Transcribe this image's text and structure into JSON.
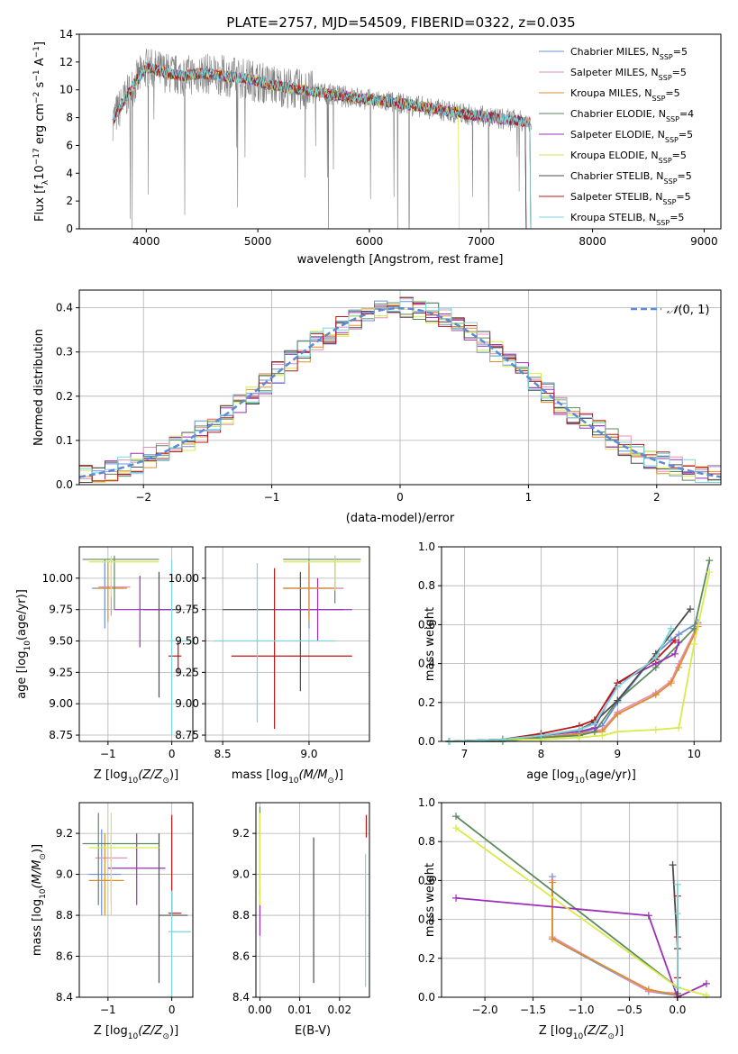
{
  "title": "PLATE=2757, MJD=54509, FIBERID=0322, z=0.035",
  "series": [
    {
      "name": "Chabrier MILES",
      "nssp": "5",
      "color": "#6a8fd8"
    },
    {
      "name": "Salpeter MILES",
      "nssp": "5",
      "color": "#e68fb8"
    },
    {
      "name": "Kroupa MILES",
      "nssp": "5",
      "color": "#d9902c"
    },
    {
      "name": "Chabrier ELODIE",
      "nssp": "4",
      "color": "#5a8a5e"
    },
    {
      "name": "Salpeter ELODIE",
      "nssp": "5",
      "color": "#9b2fb8"
    },
    {
      "name": "Kroupa ELODIE",
      "nssp": "5",
      "color": "#d9ea4a"
    },
    {
      "name": "Chabrier STELIB",
      "nssp": "5",
      "color": "#4d4d4d"
    },
    {
      "name": "Salpeter STELIB",
      "nssp": "5",
      "color": "#b81616"
    },
    {
      "name": "Kroupa STELIB",
      "nssp": "5",
      "color": "#7ad6dc"
    }
  ],
  "legend_prefix": "N",
  "legend_sub": "SSP",
  "legend_eq": "=",
  "chart_data": [
    {
      "id": "spectrum",
      "type": "line",
      "xlabel": "wavelength [Angstrom, rest frame]",
      "ylabel_parts": [
        "Flux [f",
        "λ",
        "10",
        "−17",
        " erg cm",
        "−2",
        " s",
        "−1",
        " A",
        "−1",
        "]"
      ],
      "xlim": [
        3400,
        9150
      ],
      "ylim": [
        0,
        14
      ],
      "xticks": [
        "4000",
        "5000",
        "6000",
        "7000",
        "8000",
        "9000"
      ],
      "xtick_values": [
        4000,
        5000,
        6000,
        7000,
        8000,
        9000
      ],
      "yticks": [
        "0",
        "2",
        "4",
        "6",
        "8",
        "10",
        "12",
        "14"
      ],
      "ytick_values": [
        0,
        2,
        4,
        6,
        8,
        10,
        12,
        14
      ],
      "data_color": "#808080",
      "data_range": [
        3700,
        7450
      ],
      "model_envelope": {
        "x": [
          3700,
          3800,
          3900,
          4000,
          4100,
          4300,
          4500,
          4700,
          4900,
          5100,
          5300,
          5500,
          5700,
          6000,
          6300,
          6600,
          6900,
          7200,
          7400,
          7600,
          7900,
          8200,
          8500,
          8800
        ],
        "y": [
          7.8,
          9.2,
          10.5,
          11.6,
          11.4,
          11.0,
          11.2,
          11.0,
          10.8,
          10.4,
          10.1,
          9.9,
          9.6,
          9.3,
          9.0,
          8.6,
          8.2,
          7.9,
          7.7,
          7.6,
          7.4,
          7.2,
          7.0,
          6.8
        ]
      },
      "model_ends": [
        7440,
        7440,
        7440,
        7400,
        7400,
        6800,
        7400,
        7440,
        7440
      ]
    },
    {
      "id": "residual-hist",
      "type": "bar",
      "xlabel": "(data-model)/error",
      "ylabel": "Normed distribution",
      "xlim": [
        -2.5,
        2.5
      ],
      "ylim": [
        0,
        0.44
      ],
      "xticks": [
        "−2",
        "−1",
        "0",
        "1",
        "2"
      ],
      "xtick_values": [
        -2,
        -1,
        0,
        1,
        2
      ],
      "yticks": [
        "0.0",
        "0.1",
        "0.2",
        "0.3",
        "0.4"
      ],
      "ytick_values": [
        0,
        0.1,
        0.2,
        0.3,
        0.4
      ],
      "normal_label_script": "𝒩",
      "normal_label_rest": "(0, 1)",
      "normal_color": "#5b8ad6",
      "bin_width": 0.1
    },
    {
      "id": "age-vs-Z",
      "type": "scatter",
      "xlabel_parts": [
        "Z [log",
        "10",
        "(Z/Z",
        "⊙",
        ")]"
      ],
      "ylabel_parts": [
        "age  [log",
        "10",
        "(age/yr)]"
      ],
      "xlim": [
        -1.45,
        0.33
      ],
      "ylim": [
        8.7,
        10.25
      ],
      "xticks": [
        "−1",
        "0"
      ],
      "xtick_values": [
        -1,
        0
      ],
      "yticks": [
        "8.75",
        "9.00",
        "9.25",
        "9.50",
        "9.75",
        "10.00"
      ],
      "ytick_values": [
        8.75,
        9.0,
        9.25,
        9.5,
        9.75,
        10.0
      ],
      "points": [
        {
          "s": 6,
          "x": -0.2,
          "xl": -0.45,
          "xh": 0.1,
          "y": 9.75,
          "yl": 9.05,
          "yh": 10.05
        },
        {
          "s": 4,
          "x": -0.5,
          "xl": -0.9,
          "xh": 0.0,
          "y": 9.75,
          "yl": 9.45,
          "yh": 10.02
        },
        {
          "s": 0,
          "x": -1.05,
          "xl": -1.25,
          "xh": -0.75,
          "y": 9.92,
          "yl": 9.6,
          "yh": 10.15
        },
        {
          "s": 1,
          "x": -0.95,
          "xl": -1.15,
          "xh": -0.65,
          "y": 9.93,
          "yl": 9.7,
          "yh": 10.12
        },
        {
          "s": 2,
          "x": -1.0,
          "xl": -1.2,
          "xh": -0.7,
          "y": 9.92,
          "yl": 9.65,
          "yh": 10.13
        },
        {
          "s": 3,
          "x": -0.9,
          "xl": -1.4,
          "xh": -0.2,
          "y": 10.15,
          "yl": 9.75,
          "yh": 10.18
        },
        {
          "s": 5,
          "x": -0.95,
          "xl": -1.3,
          "xh": -0.2,
          "y": 10.13,
          "yl": 9.85,
          "yh": 10.18
        },
        {
          "s": 7,
          "x": 0.1,
          "xl": -0.05,
          "xh": 0.15,
          "y": 9.38,
          "yl": 9.25,
          "yh": 9.5
        },
        {
          "s": 8,
          "x": -0.0,
          "xl": -0.05,
          "xh": 0.3,
          "y": 9.5,
          "yl": 8.75,
          "yh": 10.15
        }
      ]
    },
    {
      "id": "age-vs-mass",
      "type": "scatter",
      "xlabel_parts": [
        "mass [log",
        "10",
        "(M/M",
        "⊙",
        ")]"
      ],
      "xlim": [
        8.4,
        9.35
      ],
      "ylim": [
        8.7,
        10.25
      ],
      "xticks": [
        "8.5",
        "9.0"
      ],
      "xtick_values": [
        8.5,
        9.0
      ],
      "yticks": [
        "8.75",
        "9.00",
        "9.25",
        "9.50",
        "9.75",
        "10.00"
      ],
      "ytick_values": [
        8.75,
        9.0,
        9.25,
        9.5,
        9.75,
        10.0
      ],
      "points": [
        {
          "s": 6,
          "x": 8.95,
          "xl": 8.5,
          "xh": 9.2,
          "y": 9.75,
          "yl": 9.1,
          "yh": 10.05
        },
        {
          "s": 4,
          "x": 9.05,
          "xl": 8.8,
          "xh": 9.25,
          "y": 9.75,
          "yl": 9.5,
          "yh": 10.0
        },
        {
          "s": 0,
          "x": 9.0,
          "xl": 8.85,
          "xh": 9.2,
          "y": 9.92,
          "yl": 9.6,
          "yh": 10.15
        },
        {
          "s": 1,
          "x": 9.0,
          "xl": 8.85,
          "xh": 9.2,
          "y": 9.92,
          "yl": 9.7,
          "yh": 10.1
        },
        {
          "s": 2,
          "x": 9.0,
          "xl": 8.85,
          "xh": 9.15,
          "y": 9.92,
          "yl": 9.65,
          "yh": 10.12
        },
        {
          "s": 3,
          "x": 9.15,
          "xl": 8.85,
          "xh": 9.3,
          "y": 10.15,
          "yl": 9.8,
          "yh": 10.18
        },
        {
          "s": 5,
          "x": 9.15,
          "xl": 8.85,
          "xh": 9.3,
          "y": 10.13,
          "yl": 9.9,
          "yh": 10.18
        },
        {
          "s": 7,
          "x": 8.8,
          "xl": 8.55,
          "xh": 9.25,
          "y": 9.38,
          "yl": 8.8,
          "yh": 10.08
        },
        {
          "s": 8,
          "x": 8.7,
          "xl": 8.45,
          "xh": 9.15,
          "y": 9.5,
          "yl": 8.85,
          "yh": 10.12
        }
      ]
    },
    {
      "id": "massweight-vs-age",
      "type": "line",
      "xlabel_parts": [
        "age  [log",
        "10",
        "(age/yr)]"
      ],
      "ylabel": "mass weight",
      "xlim": [
        6.7,
        10.35
      ],
      "ylim": [
        0,
        1
      ],
      "xticks": [
        "7",
        "8",
        "9",
        "10"
      ],
      "xtick_values": [
        7,
        8,
        9,
        10
      ],
      "yticks": [
        "0.0",
        "0.2",
        "0.4",
        "0.6",
        "0.8",
        "1.0"
      ],
      "ytick_values": [
        0,
        0.2,
        0.4,
        0.6,
        0.8,
        1.0
      ],
      "series_points": [
        {
          "s": 0,
          "x": [
            6.8,
            7.5,
            8.0,
            8.5,
            8.8,
            9.0,
            9.5,
            9.7,
            9.8,
            10.05
          ],
          "y": [
            0.0,
            0.01,
            0.02,
            0.04,
            0.08,
            0.2,
            0.45,
            0.52,
            0.55,
            0.61
          ]
        },
        {
          "s": 1,
          "x": [
            6.8,
            7.5,
            8.0,
            8.5,
            8.8,
            9.0,
            9.5,
            9.7,
            9.8,
            10.05
          ],
          "y": [
            0.0,
            0.01,
            0.02,
            0.04,
            0.06,
            0.15,
            0.25,
            0.31,
            0.4,
            0.6
          ]
        },
        {
          "s": 2,
          "x": [
            6.8,
            7.5,
            8.0,
            8.5,
            8.8,
            9.0,
            9.5,
            9.7,
            9.8,
            10.05
          ],
          "y": [
            0.0,
            0.01,
            0.02,
            0.04,
            0.05,
            0.14,
            0.24,
            0.3,
            0.38,
            0.59
          ]
        },
        {
          "s": 3,
          "x": [
            6.8,
            7.5,
            8.0,
            8.5,
            8.7,
            9.0,
            9.5,
            10.0,
            10.2
          ],
          "y": [
            0.0,
            0.0,
            0.02,
            0.03,
            0.05,
            0.21,
            0.38,
            0.58,
            0.93
          ]
        },
        {
          "s": 4,
          "x": [
            6.8,
            7.5,
            8.0,
            8.5,
            8.7,
            9.0,
            9.5,
            9.75,
            9.8
          ],
          "y": [
            0.0,
            0.01,
            0.03,
            0.05,
            0.07,
            0.3,
            0.4,
            0.45,
            0.51
          ]
        },
        {
          "s": 5,
          "x": [
            6.8,
            7.5,
            8.0,
            8.5,
            8.8,
            9.0,
            9.5,
            9.8,
            10.0,
            10.2
          ],
          "y": [
            0.0,
            0.01,
            0.01,
            0.02,
            0.03,
            0.05,
            0.06,
            0.07,
            0.5,
            0.87
          ]
        },
        {
          "s": 6,
          "x": [
            6.8,
            7.5,
            8.0,
            8.5,
            8.7,
            9.0,
            9.5,
            9.95
          ],
          "y": [
            0.0,
            0.01,
            0.03,
            0.06,
            0.1,
            0.21,
            0.45,
            0.68
          ]
        },
        {
          "s": 7,
          "x": [
            6.8,
            7.5,
            8.0,
            8.5,
            8.7,
            9.0,
            9.5,
            9.75
          ],
          "y": [
            0.0,
            0.01,
            0.04,
            0.08,
            0.11,
            0.3,
            0.42,
            0.52
          ]
        },
        {
          "s": 8,
          "x": [
            6.8,
            7.5,
            8.0,
            8.5,
            8.7,
            9.0,
            9.5,
            9.7
          ],
          "y": [
            0.0,
            0.01,
            0.03,
            0.06,
            0.09,
            0.28,
            0.43,
            0.58
          ]
        }
      ]
    },
    {
      "id": "mass-vs-Z",
      "type": "scatter",
      "xlabel_parts": [
        "Z [log",
        "10",
        "(Z/Z",
        "⊙",
        ")]"
      ],
      "ylabel_parts": [
        "mass [log",
        "10",
        "(M/M",
        "⊙",
        ")]"
      ],
      "xlim": [
        -1.45,
        0.33
      ],
      "ylim": [
        8.4,
        9.35
      ],
      "xticks": [
        "−1",
        "0"
      ],
      "xtick_values": [
        -1,
        0
      ],
      "yticks": [
        "8.4",
        "8.6",
        "8.8",
        "9.0",
        "9.2"
      ],
      "ytick_values": [
        8.4,
        8.6,
        8.8,
        9.0,
        9.2
      ],
      "points": [
        {
          "s": 6,
          "x": -0.2,
          "xl": -0.2,
          "xh": 0.25,
          "y": 8.8,
          "yl": 8.47,
          "yh": 9.2
        },
        {
          "s": 4,
          "x": -0.55,
          "xl": -1.0,
          "xh": -0.1,
          "y": 9.03,
          "yl": 8.85,
          "yh": 9.2
        },
        {
          "s": 0,
          "x": -1.1,
          "xl": -1.3,
          "xh": -0.8,
          "y": 9.0,
          "yl": 8.8,
          "yh": 9.22
        },
        {
          "s": 1,
          "x": -0.95,
          "xl": -1.2,
          "xh": -0.7,
          "y": 9.08,
          "yl": 8.85,
          "yh": 9.2
        },
        {
          "s": 2,
          "x": -1.05,
          "xl": -1.3,
          "xh": -0.75,
          "y": 8.97,
          "yl": 8.8,
          "yh": 9.2
        },
        {
          "s": 3,
          "x": -1.15,
          "xl": -1.4,
          "xh": -0.2,
          "y": 9.15,
          "yl": 8.85,
          "yh": 9.3
        },
        {
          "s": 5,
          "x": -0.95,
          "xl": -1.3,
          "xh": -0.2,
          "y": 9.13,
          "yl": 8.8,
          "yh": 9.3
        },
        {
          "s": 7,
          "x": 0.0,
          "xl": -0.05,
          "xh": 0.15,
          "y": 8.81,
          "yl": 8.8,
          "yh": 9.29
        },
        {
          "s": 8,
          "x": 0.0,
          "xl": -0.05,
          "xh": 0.3,
          "y": 8.72,
          "yl": 8.4,
          "yh": 8.92
        }
      ]
    },
    {
      "id": "mass-vs-EBV",
      "type": "scatter",
      "xlabel": "E(B-V)",
      "xlim": [
        -0.001,
        0.0275
      ],
      "ylim": [
        8.4,
        9.35
      ],
      "xticks": [
        "0.00",
        "0.01",
        "0.02"
      ],
      "xtick_values": [
        0,
        0.01,
        0.02
      ],
      "yticks": [
        "8.4",
        "8.6",
        "8.8",
        "9.0",
        "9.2"
      ],
      "ytick_values": [
        8.4,
        8.6,
        8.8,
        9.0,
        9.2
      ],
      "points": [
        {
          "s": 6,
          "x": 0.0135,
          "xl": 0.0135,
          "xh": 0.0135,
          "y": 8.8,
          "yl": 8.47,
          "yh": 9.18
        },
        {
          "s": 4,
          "x": 0.0,
          "xl": 0.0,
          "xh": 0.0,
          "y": 8.8,
          "yl": 8.7,
          "yh": 8.92
        },
        {
          "s": 3,
          "x": 0.0,
          "xl": 0.0,
          "xh": 0.0,
          "y": 9.15,
          "yl": 8.9,
          "yh": 9.33
        },
        {
          "s": 5,
          "x": 0.0,
          "xl": 0.0,
          "xh": 0.0,
          "y": 9.1,
          "yl": 8.85,
          "yh": 9.3
        },
        {
          "s": 7,
          "x": 0.0267,
          "xl": 0.0267,
          "xh": 0.0267,
          "y": 9.2,
          "yl": 9.18,
          "yh": 9.29
        },
        {
          "s": 8,
          "x": 0.0265,
          "xl": 0.0265,
          "xh": 0.0265,
          "y": 8.7,
          "yl": 8.45,
          "yh": 9.1
        }
      ]
    },
    {
      "id": "massweight-vs-Z",
      "type": "line",
      "xlabel_parts": [
        "Z [log",
        "10",
        "(Z/Z",
        "⊙",
        ")]"
      ],
      "ylabel": "mass weight",
      "xlim": [
        -2.45,
        0.45
      ],
      "ylim": [
        0,
        1
      ],
      "xticks": [
        "−2.0",
        "−1.5",
        "−1.0",
        "−0.5",
        "0.0"
      ],
      "xtick_values": [
        -2.0,
        -1.5,
        -1.0,
        -0.5,
        0.0
      ],
      "yticks": [
        "0.0",
        "0.2",
        "0.4",
        "0.6",
        "0.8",
        "1.0"
      ],
      "ytick_values": [
        0,
        0.2,
        0.4,
        0.6,
        0.8,
        1.0
      ],
      "series_points": [
        {
          "s": 0,
          "x": [
            -1.3,
            -1.3,
            -0.3,
            0.0
          ],
          "y": [
            0.62,
            0.3,
            0.03,
            0.01
          ]
        },
        {
          "s": 1,
          "x": [
            -1.3,
            -1.3,
            -0.3,
            0.0
          ],
          "y": [
            0.6,
            0.31,
            0.03,
            0.02
          ]
        },
        {
          "s": 2,
          "x": [
            -1.3,
            -1.3,
            -0.3,
            0.0
          ],
          "y": [
            0.59,
            0.3,
            0.04,
            0.01
          ]
        },
        {
          "s": 3,
          "x": [
            -2.3,
            0.0,
            0.0
          ],
          "y": [
            0.93,
            0.05,
            0.02
          ]
        },
        {
          "s": 4,
          "x": [
            -2.3,
            -0.3,
            0.0,
            0.3
          ],
          "y": [
            0.51,
            0.42,
            0.0,
            0.07
          ]
        },
        {
          "s": 5,
          "x": [
            -2.3,
            0.0,
            0.3
          ],
          "y": [
            0.87,
            0.05,
            0.01
          ]
        },
        {
          "s": 6,
          "x": [
            -0.05,
            0.0,
            0.0
          ],
          "y": [
            0.68,
            0.25,
            0.0
          ]
        },
        {
          "s": 7,
          "x": [
            0.0,
            0.0,
            0.0
          ],
          "y": [
            0.52,
            0.31,
            0.1
          ]
        },
        {
          "s": 8,
          "x": [
            0.0,
            0.0,
            0.0
          ],
          "y": [
            0.58,
            0.43,
            0.05
          ]
        }
      ]
    }
  ]
}
